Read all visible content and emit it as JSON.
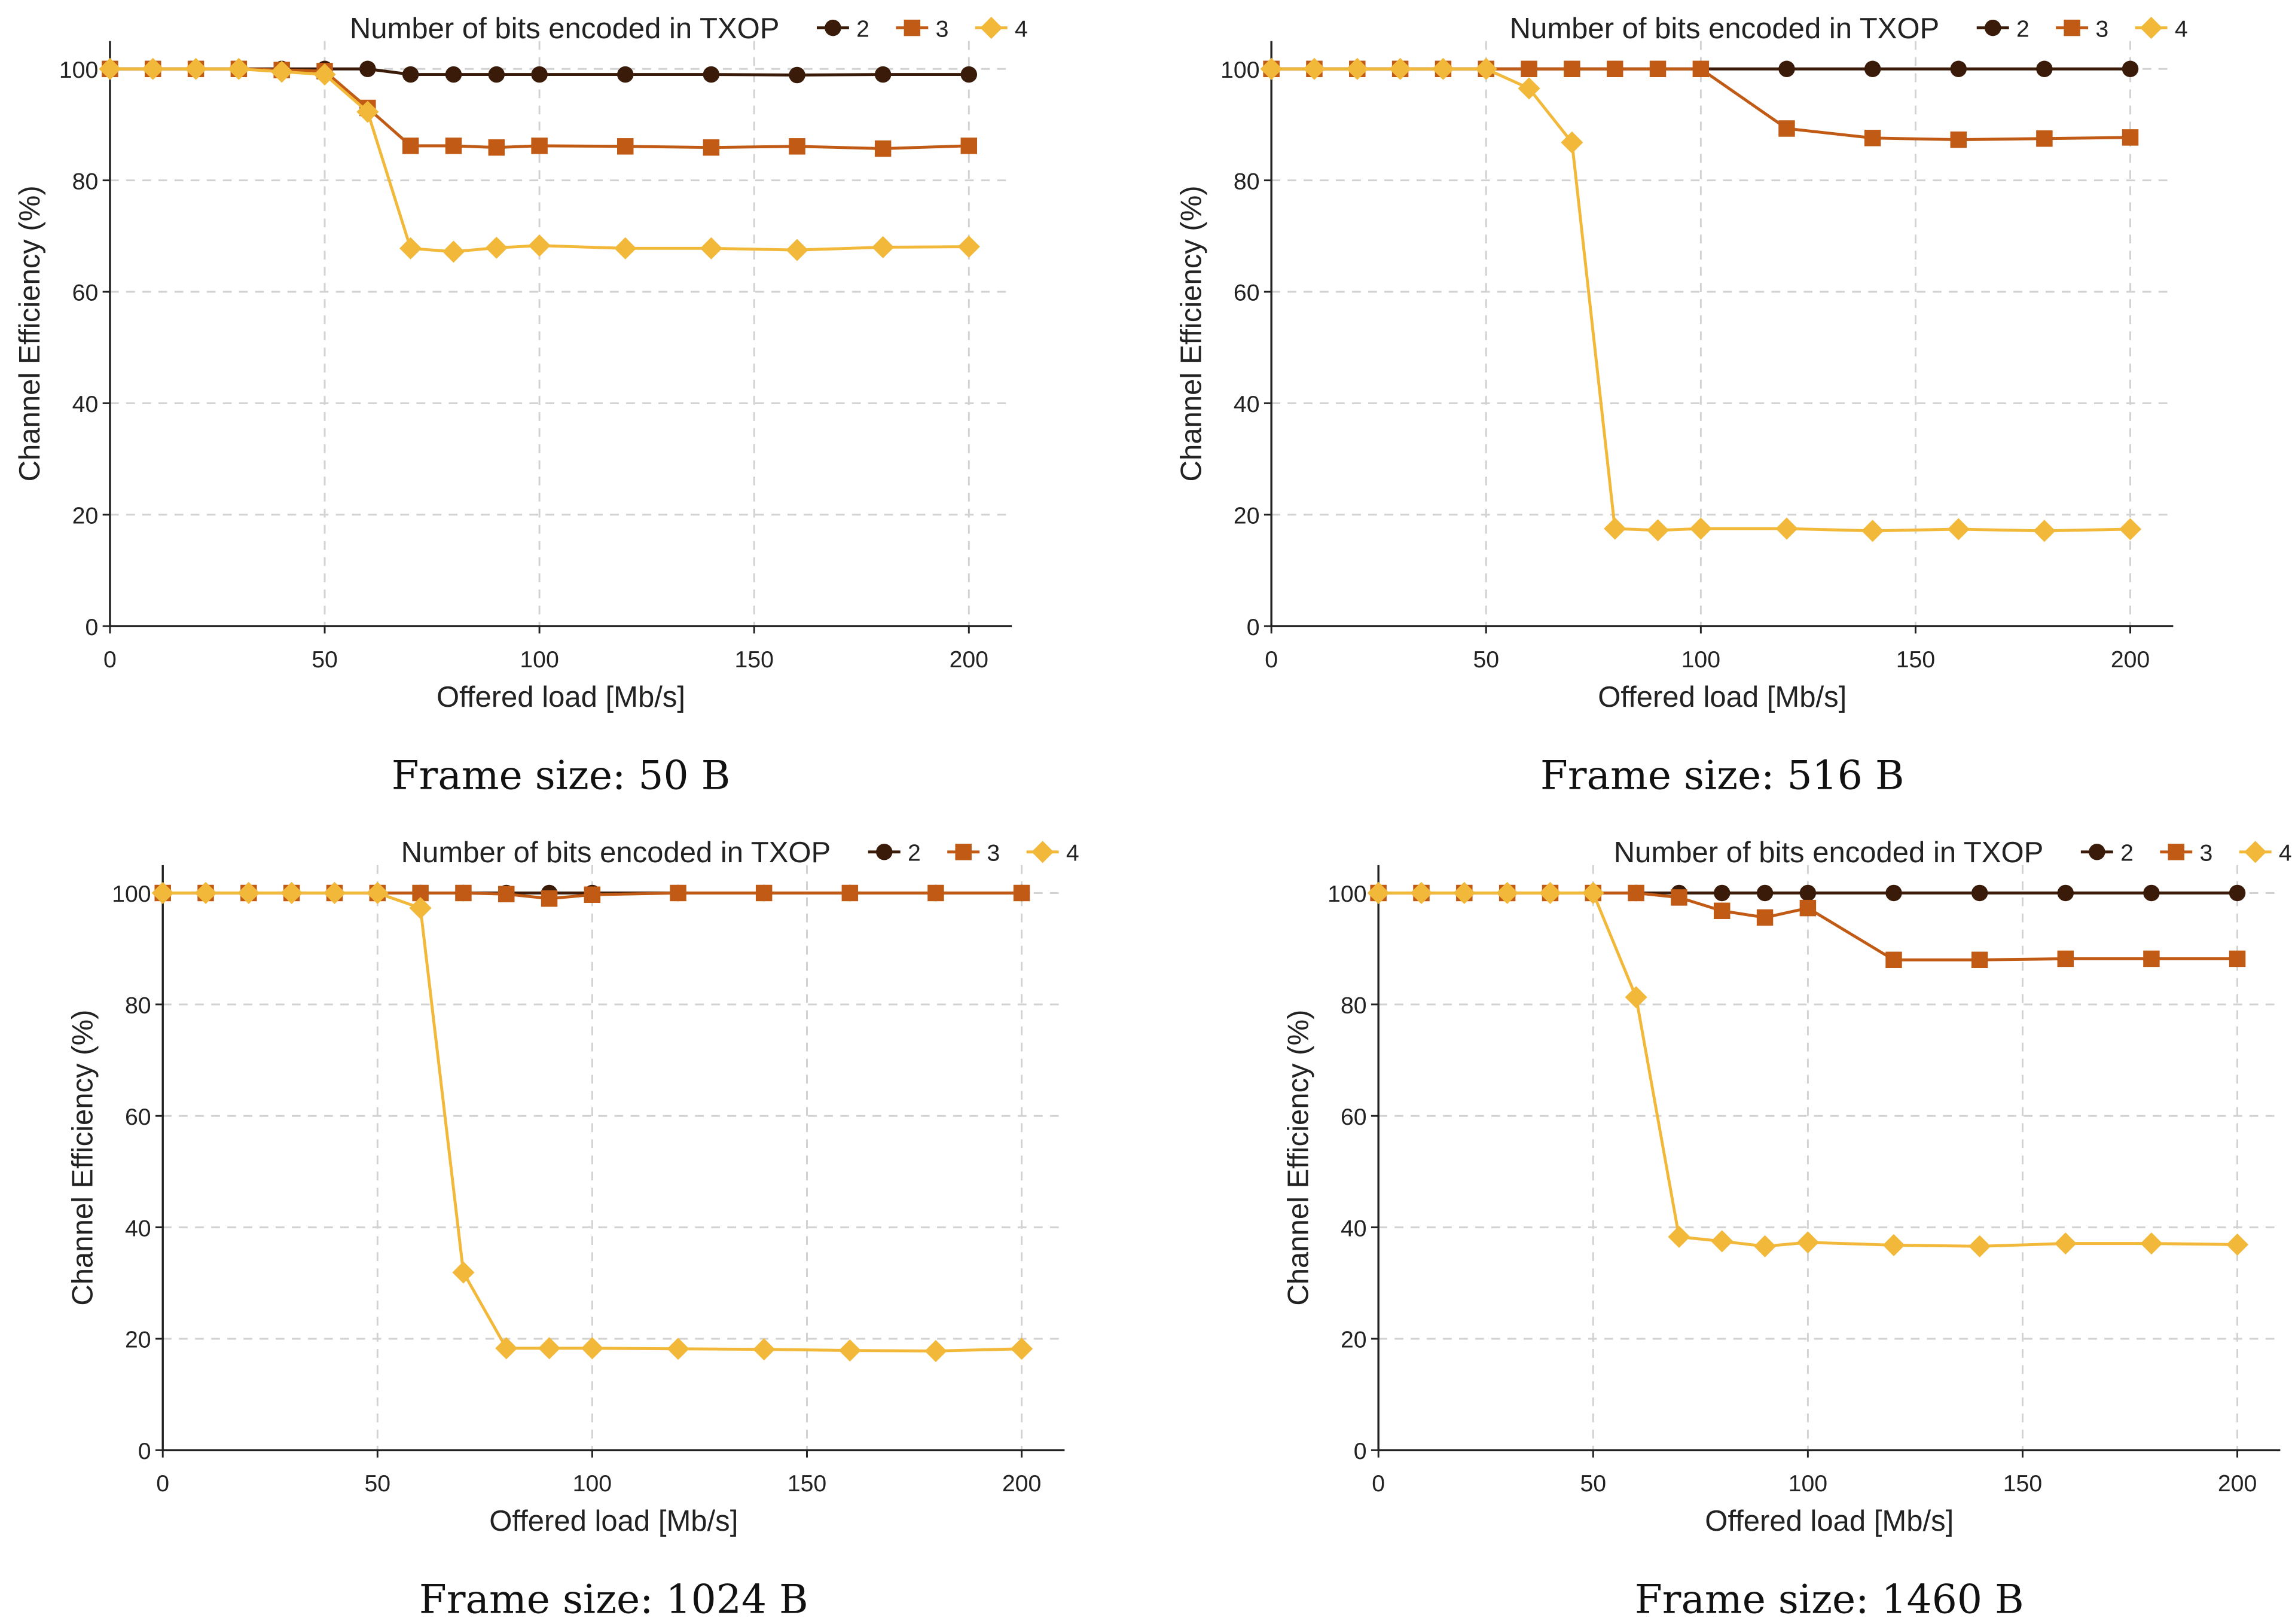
{
  "colors": {
    "series_2": "#3a1b0a",
    "series_3": "#c05a14",
    "series_4": "#f2b83a",
    "grid": "#d2d2d2",
    "axis": "#222222"
  },
  "chart_data": [
    {
      "type": "line",
      "caption": "Frame size: 50 B",
      "legend_title": "Number of bits encoded in TXOP",
      "xlabel": "Offered load [Mb/s]",
      "ylabel": "Channel Efficiency (%)",
      "xlim": [
        0,
        210
      ],
      "ylim": [
        0,
        105
      ],
      "xticks": [
        0,
        50,
        100,
        150,
        200
      ],
      "yticks": [
        0,
        20,
        40,
        60,
        80,
        100
      ],
      "grid": true,
      "legend_position": "top",
      "x": [
        0,
        10,
        20,
        30,
        40,
        50,
        60,
        70,
        80,
        90,
        100,
        120,
        140,
        160,
        180,
        200
      ],
      "series": [
        {
          "name": "2",
          "marker": "circle",
          "values": [
            100,
            100,
            100,
            100,
            100,
            100,
            100,
            99,
            99,
            99,
            99,
            99,
            99,
            98.9,
            99,
            99
          ]
        },
        {
          "name": "3",
          "marker": "square",
          "values": [
            100,
            100,
            100,
            100,
            99.8,
            99.6,
            93,
            86.2,
            86.2,
            85.9,
            86.2,
            86.1,
            85.9,
            86.1,
            85.7,
            86.2
          ]
        },
        {
          "name": "4",
          "marker": "diamond",
          "values": [
            100,
            100,
            100,
            100,
            99.5,
            99,
            92.3,
            67.8,
            67.2,
            67.9,
            68.3,
            67.8,
            67.8,
            67.5,
            68,
            68.1
          ]
        }
      ]
    },
    {
      "type": "line",
      "caption": "Frame size: 516 B",
      "legend_title": "Number of bits encoded in TXOP",
      "xlabel": "Offered load [Mb/s]",
      "ylabel": "Channel Efficiency (%)",
      "xlim": [
        0,
        210
      ],
      "ylim": [
        0,
        105
      ],
      "xticks": [
        0,
        50,
        100,
        150,
        200
      ],
      "yticks": [
        0,
        20,
        40,
        60,
        80,
        100
      ],
      "grid": true,
      "legend_position": "top",
      "x": [
        0,
        10,
        20,
        30,
        40,
        50,
        60,
        70,
        80,
        90,
        100,
        120,
        140,
        160,
        180,
        200
      ],
      "series": [
        {
          "name": "2",
          "marker": "circle",
          "values": [
            100,
            100,
            100,
            100,
            100,
            100,
            100,
            100,
            100,
            100,
            100,
            100,
            100,
            100,
            100,
            100
          ]
        },
        {
          "name": "3",
          "marker": "square",
          "values": [
            100,
            100,
            100,
            100,
            100,
            100,
            100,
            100,
            100,
            100,
            100,
            89.3,
            87.6,
            87.3,
            87.5,
            87.7
          ]
        },
        {
          "name": "4",
          "marker": "diamond",
          "values": [
            100,
            100,
            100,
            100,
            100,
            100,
            96.5,
            86.8,
            17.5,
            17.2,
            17.5,
            17.5,
            17.1,
            17.4,
            17.1,
            17.4
          ]
        }
      ]
    },
    {
      "type": "line",
      "caption": "Frame size: 1024 B",
      "legend_title": "Number of bits encoded in TXOP",
      "xlabel": "Offered load [Mb/s]",
      "ylabel": "Channel Efficiency (%)",
      "xlim": [
        0,
        210
      ],
      "ylim": [
        0,
        105
      ],
      "xticks": [
        0,
        50,
        100,
        150,
        200
      ],
      "yticks": [
        0,
        20,
        40,
        60,
        80,
        100
      ],
      "grid": true,
      "legend_position": "top",
      "x": [
        0,
        10,
        20,
        30,
        40,
        50,
        60,
        70,
        80,
        90,
        100,
        120,
        140,
        160,
        180,
        200
      ],
      "series": [
        {
          "name": "2",
          "marker": "circle",
          "values": [
            100,
            100,
            100,
            100,
            100,
            100,
            100,
            100,
            100,
            100,
            100,
            100,
            100,
            100,
            100,
            100
          ]
        },
        {
          "name": "3",
          "marker": "square",
          "values": [
            100,
            100,
            100,
            100,
            100,
            100,
            100,
            100,
            99.8,
            99,
            99.7,
            100,
            100,
            100,
            100,
            100
          ]
        },
        {
          "name": "4",
          "marker": "diamond",
          "values": [
            100,
            100,
            100,
            100,
            100,
            100,
            97.3,
            31.9,
            18.3,
            18.3,
            18.3,
            18.2,
            18.1,
            17.9,
            17.8,
            18.2
          ]
        }
      ]
    },
    {
      "type": "line",
      "caption": "Frame size: 1460 B",
      "legend_title": "Number of bits encoded in TXOP",
      "xlabel": "Offered load [Mb/s]",
      "ylabel": "Channel Efficiency (%)",
      "xlim": [
        0,
        210
      ],
      "ylim": [
        0,
        105
      ],
      "xticks": [
        0,
        50,
        100,
        150,
        200
      ],
      "yticks": [
        0,
        20,
        40,
        60,
        80,
        100
      ],
      "grid": true,
      "legend_position": "top",
      "x": [
        0,
        10,
        20,
        30,
        40,
        50,
        60,
        70,
        80,
        90,
        100,
        120,
        140,
        160,
        180,
        200
      ],
      "series": [
        {
          "name": "2",
          "marker": "circle",
          "values": [
            100,
            100,
            100,
            100,
            100,
            100,
            100,
            100,
            100,
            100,
            100,
            100,
            100,
            100,
            100,
            100
          ]
        },
        {
          "name": "3",
          "marker": "square",
          "values": [
            100,
            100,
            100,
            100,
            100,
            100,
            100,
            99.2,
            96.8,
            95.6,
            97.3,
            88,
            88,
            88.2,
            88.2,
            88.2
          ]
        },
        {
          "name": "4",
          "marker": "diamond",
          "values": [
            100,
            100,
            100,
            100,
            100,
            100,
            81.3,
            38.3,
            37.5,
            36.6,
            37.3,
            36.8,
            36.6,
            37.1,
            37.1,
            36.9
          ]
        }
      ]
    }
  ]
}
